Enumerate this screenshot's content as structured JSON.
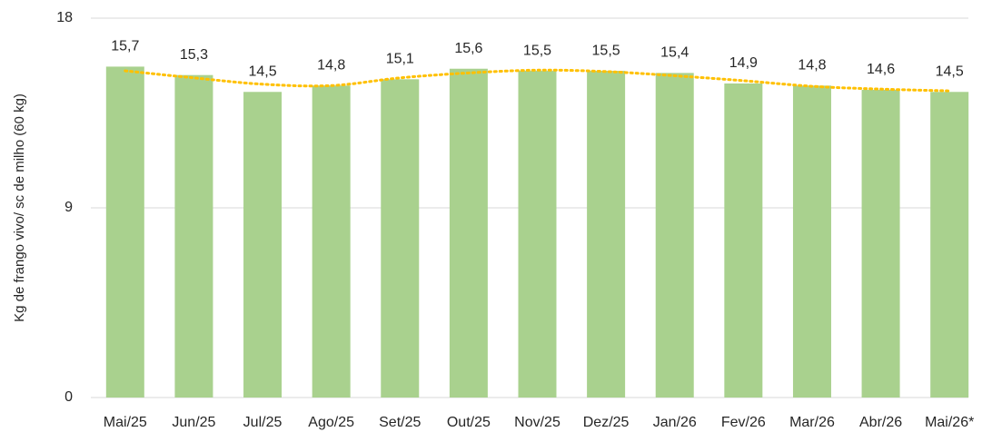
{
  "chart_data": {
    "type": "bar",
    "y_label": "Kg de frango vivo/ sc de milho (60 kg)",
    "categories": [
      "Mai/25",
      "Jun/25",
      "Jul/25",
      "Ago/25",
      "Set/25",
      "Out/25",
      "Nov/25",
      "Dez/25",
      "Jan/26",
      "Fev/26",
      "Mar/26",
      "Abr/26",
      "Mai/26*"
    ],
    "values": [
      15.7,
      15.3,
      14.5,
      14.8,
      15.1,
      15.6,
      15.5,
      15.5,
      15.4,
      14.9,
      14.8,
      14.6,
      14.5
    ],
    "value_labels": [
      "15,7",
      "15,3",
      "14,5",
      "14,8",
      "15,1",
      "15,6",
      "15,5",
      "15,5",
      "15,4",
      "14,9",
      "14,8",
      "14,6",
      "14,5"
    ],
    "color": "#a9d18e",
    "ylim": [
      0,
      18
    ],
    "yticks": [
      0,
      9,
      18
    ],
    "grid": true,
    "trendline": {
      "color": "#ffc000",
      "style": "dotted"
    }
  }
}
